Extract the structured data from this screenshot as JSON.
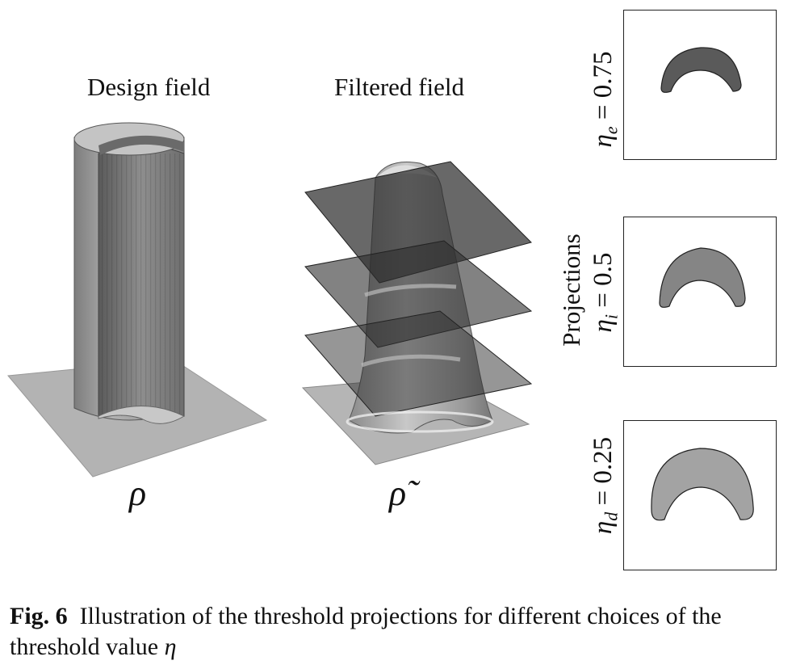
{
  "titles": {
    "design": "Design field",
    "filtered": "Filtered field"
  },
  "symbols": {
    "rho": "ρ",
    "rho_tilde": "ρ̃"
  },
  "projections_label": "Projections",
  "projections": [
    {
      "eta": "η",
      "sub": "e",
      "eq": " = 0.75",
      "fill": "#5a5a5a"
    },
    {
      "eta": "η",
      "sub": "i",
      "eq": " = 0.5",
      "fill": "#858585"
    },
    {
      "eta": "η",
      "sub": "d",
      "eq": " = 0.25",
      "fill": "#a3a3a3"
    }
  ],
  "caption": {
    "label": "Fig. 6",
    "text": "Illustration of the threshold projections for different choices of the threshold value ",
    "symbol": "η"
  }
}
